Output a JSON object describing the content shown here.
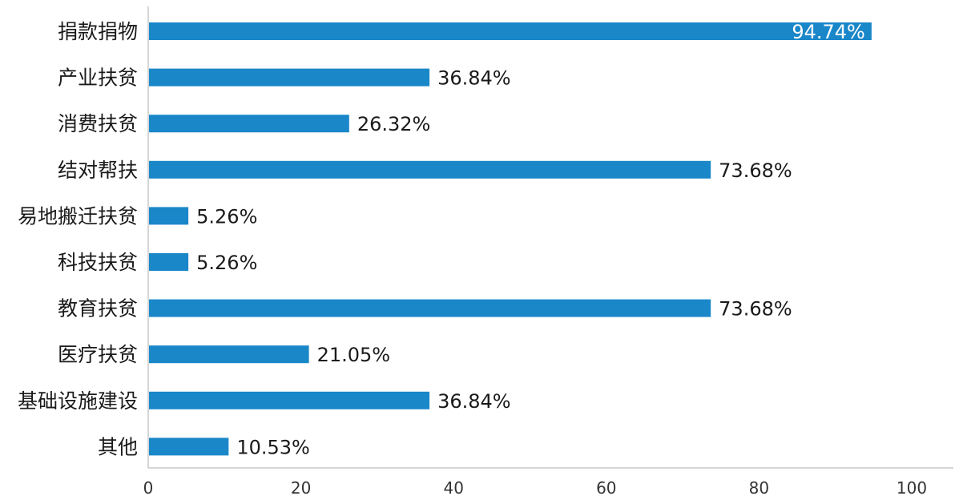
{
  "chart_data": {
    "type": "bar",
    "orientation": "horizontal",
    "title": "",
    "xlabel": "",
    "ylabel": "",
    "categories": [
      "捐款捐物",
      "产业扶贫",
      "消费扶贫",
      "结对帮扶",
      "易地搬迁扶贫",
      "科技扶贫",
      "教育扶贫",
      "医疗扶贫",
      "基础设施建设",
      "其他"
    ],
    "values": [
      94.74,
      36.84,
      26.32,
      73.68,
      5.26,
      5.26,
      73.68,
      21.05,
      36.84,
      10.53
    ],
    "value_labels": [
      "94.74%",
      "36.84%",
      "26.32%",
      "73.68%",
      "5.26%",
      "5.26%",
      "73.68%",
      "21.05%",
      "36.84%",
      "10.53%"
    ],
    "xlim": [
      0,
      100
    ],
    "xticks": [
      0,
      20,
      40,
      60,
      80,
      100
    ],
    "xtick_labels": [
      "0",
      "20",
      "40",
      "60",
      "80",
      "100"
    ],
    "grid": false,
    "legend": "none",
    "colors": {
      "bar": "#1a87c9",
      "axis": "#c8c8c8",
      "text": "#1a1a1a",
      "inner_label": "#ffffff"
    }
  }
}
